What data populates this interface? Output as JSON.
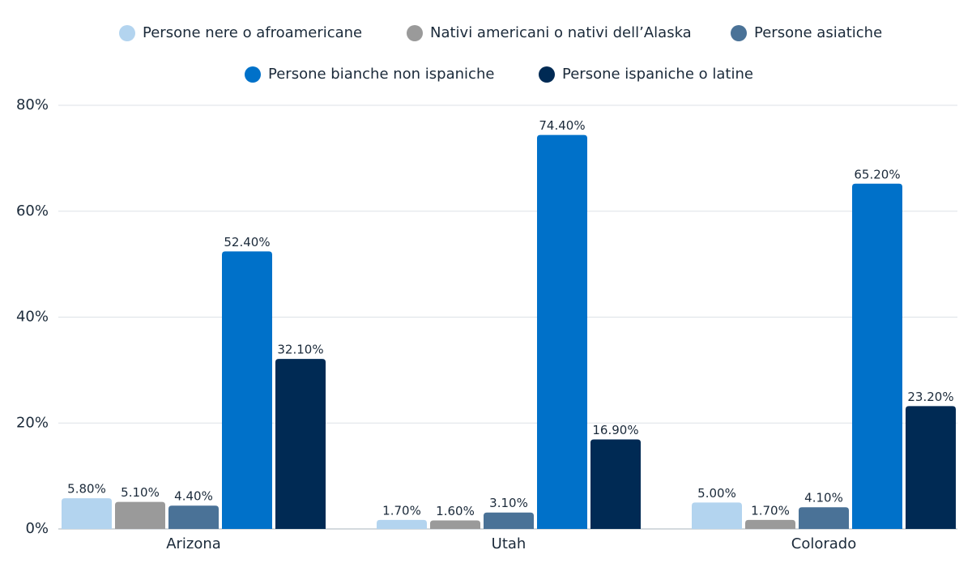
{
  "chart_data": {
    "type": "bar",
    "categories": [
      "Arizona",
      "Utah",
      "Colorado"
    ],
    "series": [
      {
        "name": "Persone nere o afroamericane",
        "color": "#b3d4ef",
        "values": [
          5.8,
          1.7,
          5.0
        ],
        "value_labels": [
          "5.80%",
          "1.70%",
          "5.00%"
        ]
      },
      {
        "name": "Nativi americani o nativi dell’Alaska",
        "color": "#9a9a9a",
        "values": [
          5.1,
          1.6,
          1.7
        ],
        "value_labels": [
          "5.10%",
          "1.60%",
          "1.70%"
        ]
      },
      {
        "name": "Persone asiatiche",
        "color": "#4a7297",
        "values": [
          4.4,
          3.1,
          4.1
        ],
        "value_labels": [
          "4.40%",
          "3.10%",
          "4.10%"
        ]
      },
      {
        "name": "Persone bianche non ispaniche",
        "color": "#0071c9",
        "values": [
          52.4,
          74.4,
          65.2
        ],
        "value_labels": [
          "52.40%",
          "74.40%",
          "65.20%"
        ]
      },
      {
        "name": "Persone ispaniche o latine",
        "color": "#002a54",
        "values": [
          32.1,
          16.9,
          23.2
        ],
        "value_labels": [
          "32.10%",
          "16.90%",
          "23.20%"
        ]
      }
    ],
    "ylim": [
      0,
      80
    ],
    "yticks": [
      {
        "value": 0,
        "label": "0%"
      },
      {
        "value": 20,
        "label": "20%"
      },
      {
        "value": 40,
        "label": "40%"
      },
      {
        "value": 60,
        "label": "60%"
      },
      {
        "value": 80,
        "label": "80%"
      }
    ],
    "grid": true
  }
}
